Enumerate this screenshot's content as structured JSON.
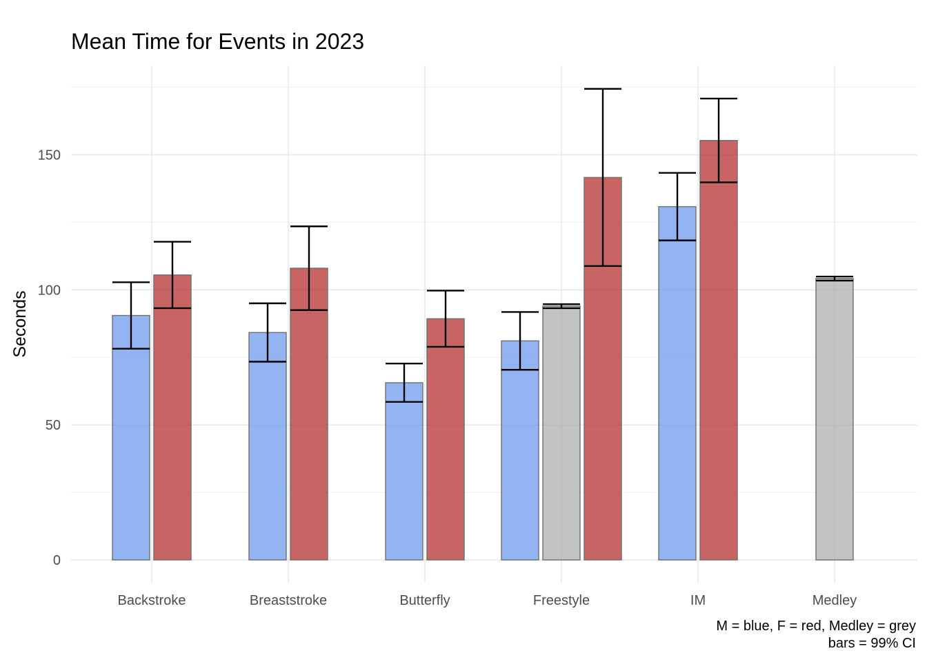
{
  "chart_data": {
    "type": "bar",
    "title": "Mean Time for Events in 2023",
    "xlabel": "",
    "ylabel": "Seconds",
    "ylim": [
      0,
      180
    ],
    "yticks": [
      0,
      50,
      100,
      150
    ],
    "grid": true,
    "categories": [
      "Backstroke",
      "Breaststroke",
      "Butterfly",
      "Freestyle",
      "IM",
      "Medley"
    ],
    "colors": {
      "M": "#6495ED",
      "Medley": "#A9A9A9",
      "F": "#B22222"
    },
    "bars": [
      {
        "category": "Backstroke",
        "group": "M",
        "value": 90.5,
        "ci_low": 78.2,
        "ci_high": 102.8
      },
      {
        "category": "Backstroke",
        "group": "F",
        "value": 105.5,
        "ci_low": 93.2,
        "ci_high": 117.8
      },
      {
        "category": "Breaststroke",
        "group": "M",
        "value": 84.2,
        "ci_low": 73.4,
        "ci_high": 95.0
      },
      {
        "category": "Breaststroke",
        "group": "F",
        "value": 108.0,
        "ci_low": 92.5,
        "ci_high": 123.5
      },
      {
        "category": "Butterfly",
        "group": "M",
        "value": 65.6,
        "ci_low": 58.5,
        "ci_high": 72.7
      },
      {
        "category": "Butterfly",
        "group": "F",
        "value": 89.3,
        "ci_low": 78.9,
        "ci_high": 99.7
      },
      {
        "category": "Freestyle",
        "group": "M",
        "value": 81.1,
        "ci_low": 70.4,
        "ci_high": 91.8
      },
      {
        "category": "Freestyle",
        "group": "Medley",
        "value": 94.0,
        "ci_low": 93.2,
        "ci_high": 94.7
      },
      {
        "category": "Freestyle",
        "group": "F",
        "value": 141.6,
        "ci_low": 108.8,
        "ci_high": 174.4
      },
      {
        "category": "IM",
        "group": "M",
        "value": 130.8,
        "ci_low": 118.3,
        "ci_high": 143.3
      },
      {
        "category": "IM",
        "group": "F",
        "value": 155.3,
        "ci_low": 139.8,
        "ci_high": 170.8
      },
      {
        "category": "Medley",
        "group": "Medley",
        "value": 104.2,
        "ci_low": 103.4,
        "ci_high": 104.9
      }
    ],
    "caption": [
      "M = blue, F = red, Medley = grey",
      "bars = 99% CI"
    ]
  }
}
